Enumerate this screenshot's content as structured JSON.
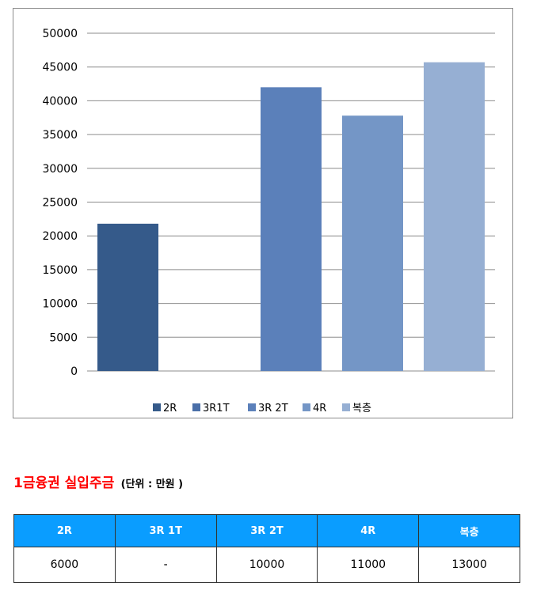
{
  "chart_data": {
    "type": "bar",
    "categories": [
      "2R",
      "3R1T",
      "3R 2T",
      "4R",
      "복층"
    ],
    "values": [
      21800,
      0,
      42000,
      37800,
      45700
    ],
    "colors": [
      "#355a8a",
      "#4a6fa8",
      "#5b80ba",
      "#7496c6",
      "#96afd3"
    ],
    "ylim": [
      0,
      50000
    ],
    "yticks": [
      0,
      5000,
      10000,
      15000,
      20000,
      25000,
      30000,
      35000,
      40000,
      45000,
      50000
    ],
    "grid": true,
    "legend_position": "bottom",
    "title": "",
    "xlabel": "",
    "ylabel": ""
  },
  "section_title": {
    "main": "1금융권 실입주금",
    "unit": "(단위 : 만원 )"
  },
  "table": {
    "headers": [
      "2R",
      "3R 1T",
      "3R 2T",
      "4R",
      "복층"
    ],
    "rows": [
      [
        "6000",
        "-",
        "10000",
        "11000",
        "13000"
      ]
    ]
  }
}
